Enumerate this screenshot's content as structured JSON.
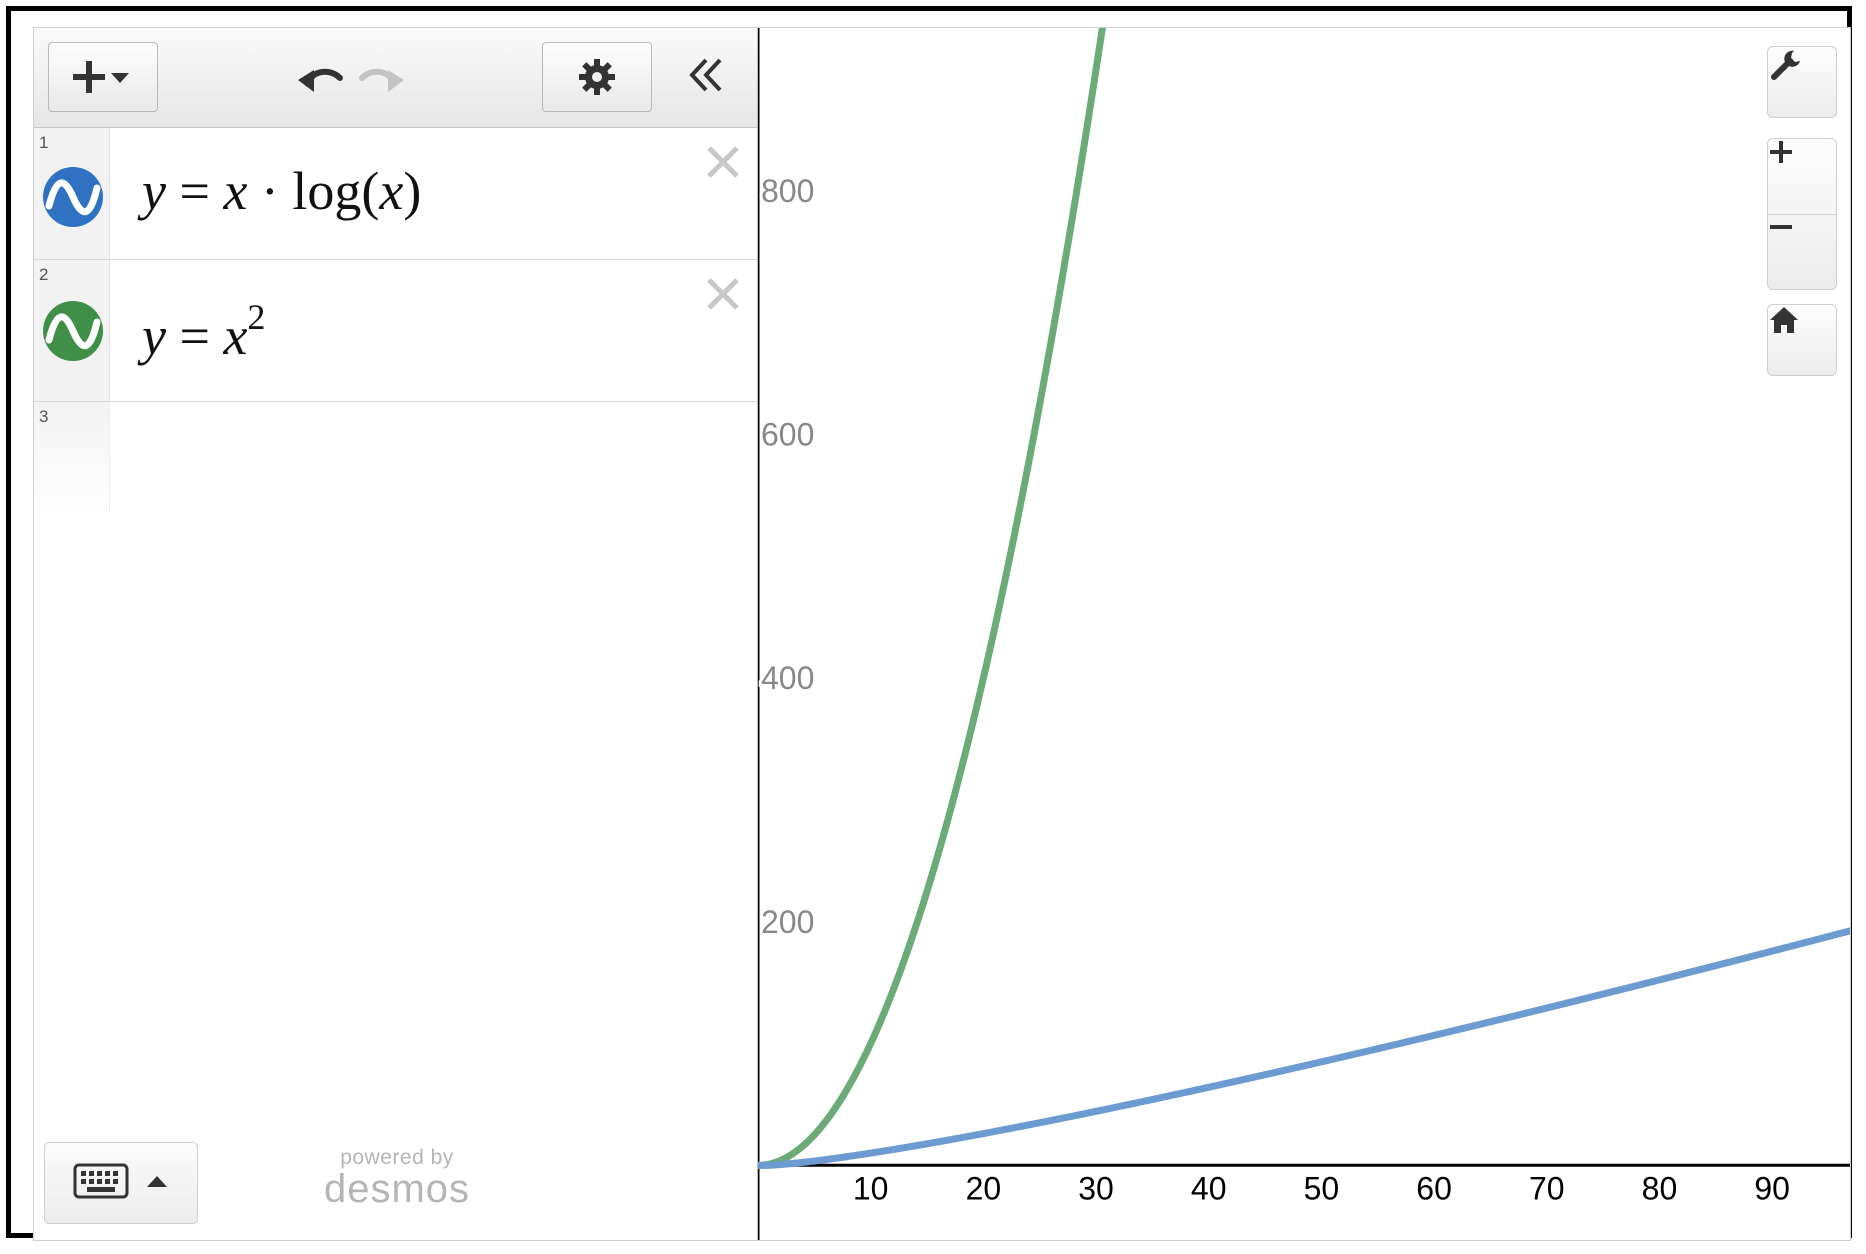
{
  "toolbar": {
    "add_icon": "plus-dropdown-icon",
    "undo_icon": "undo-icon",
    "redo_icon": "redo-icon",
    "settings_icon": "gear-icon",
    "collapse_icon": "double-chevron-left-icon"
  },
  "expressions": [
    {
      "index": "1",
      "color": "#2f72c4",
      "line_color": "#6b9bd1",
      "lhs": "y",
      "latex_text": "y = x · log(x)"
    },
    {
      "index": "2",
      "color": "#3f8f48",
      "line_color": "#6aab77",
      "lhs": "y",
      "latex_text": "y = x2"
    },
    {
      "index": "3"
    }
  ],
  "footer": {
    "keyboard_icon": "keyboard-icon",
    "powered_by": "powered by",
    "brand": "desmos"
  },
  "graph_controls": [
    "wrench-icon",
    "zoom-in-icon",
    "zoom-out-icon",
    "home-icon"
  ],
  "chart_data": {
    "type": "line",
    "xlim": [
      0,
      97
    ],
    "ylim": [
      -63,
      934
    ],
    "x_ticks": [
      10,
      20,
      30,
      40,
      50,
      60,
      70,
      80,
      90
    ],
    "x_tick_labels": [
      "10",
      "20",
      "30",
      "40",
      "50",
      "60",
      "70",
      "80",
      "90"
    ],
    "y_ticks": [
      200,
      400,
      600,
      800
    ],
    "y_tick_labels": [
      "200",
      "400",
      "600",
      "800"
    ],
    "grid": false,
    "series": [
      {
        "name": "y = x · log(x)",
        "function": "x*log10(x)",
        "color": "#6b9bd1"
      },
      {
        "name": "y = x^2",
        "function": "x^2",
        "color": "#6aab77"
      }
    ]
  }
}
